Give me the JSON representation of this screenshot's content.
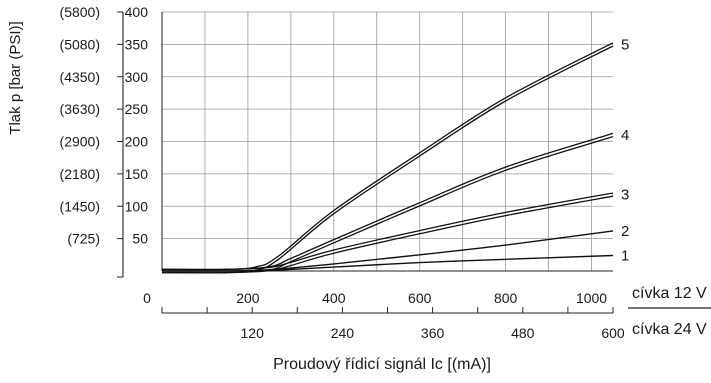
{
  "chart_data": {
    "type": "line",
    "ylabel": "Tlak p [bar (PSI)]",
    "xlabel": "Proudový řídicí signál Ic [(mA)]",
    "y_ticks": [
      {
        "bar": "400",
        "psi": "(5800)"
      },
      {
        "bar": "350",
        "psi": "(5080)"
      },
      {
        "bar": "300",
        "psi": "(4350)"
      },
      {
        "bar": "250",
        "psi": "(3630)"
      },
      {
        "bar": "200",
        "psi": "(2900)"
      },
      {
        "bar": "150",
        "psi": "(2180)"
      },
      {
        "bar": "100",
        "psi": "(1450)"
      },
      {
        "bar": "50",
        "psi": "(725)"
      }
    ],
    "ylim": [
      0,
      400
    ],
    "xlim": [
      0,
      1050
    ],
    "x_axis_12v": {
      "label": "cívka 12 V",
      "ticks": [
        "0",
        "200",
        "400",
        "600",
        "800",
        "1000"
      ],
      "values": [
        0,
        200,
        400,
        600,
        800,
        1000
      ]
    },
    "x_axis_24v": {
      "label": "cívka 24 V",
      "ticks": [
        "120",
        "240",
        "360",
        "480",
        "600"
      ],
      "values": [
        120,
        240,
        360,
        480,
        600
      ]
    },
    "grid": true,
    "series": [
      {
        "name": "1",
        "double": false,
        "x": [
          0,
          150,
          250,
          400,
          600,
          800,
          1050
        ],
        "y": [
          0,
          0,
          1,
          6,
          13,
          18,
          24
        ]
      },
      {
        "name": "2",
        "double": false,
        "x": [
          0,
          150,
          250,
          400,
          600,
          800,
          1050
        ],
        "y": [
          0,
          0,
          2,
          11,
          25,
          40,
          62
        ]
      },
      {
        "name": "3",
        "double": true,
        "x": [
          0,
          150,
          250,
          300,
          400,
          600,
          800,
          1050
        ],
        "y": [
          0,
          0,
          3,
          11,
          30,
          60,
          88,
          118
        ]
      },
      {
        "name": "4",
        "double": true,
        "x": [
          0,
          150,
          250,
          300,
          400,
          600,
          800,
          1050
        ],
        "y": [
          0,
          0,
          4,
          17,
          46,
          103,
          158,
          210
        ]
      },
      {
        "name": "5",
        "double": true,
        "x": [
          0,
          150,
          220,
          270,
          400,
          600,
          800,
          1050
        ],
        "y": [
          0,
          0,
          4,
          20,
          91,
          180,
          265,
          350
        ]
      }
    ]
  }
}
